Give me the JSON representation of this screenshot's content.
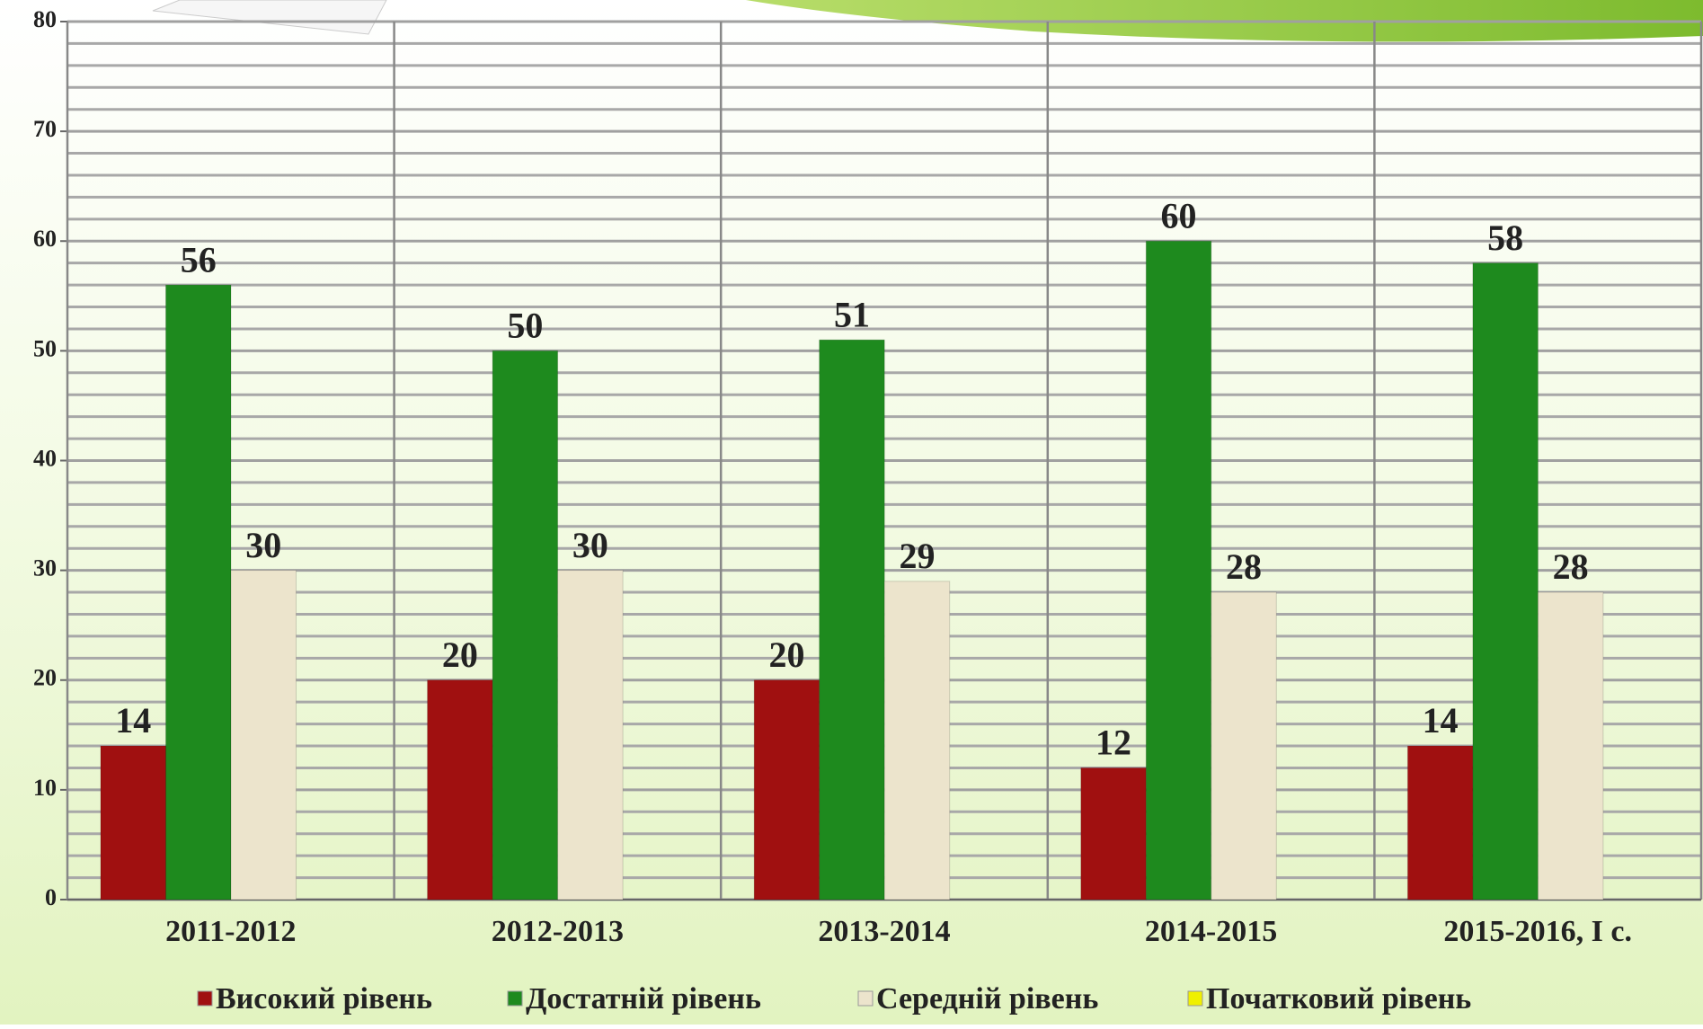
{
  "chart_data": {
    "type": "bar",
    "categories": [
      "2011-2012",
      "2012-2013",
      "2013-2014",
      "2014-2015",
      "2015-2016, I с."
    ],
    "series": [
      {
        "name": "Високий рівень",
        "color": "#a01010",
        "values": [
          14,
          20,
          20,
          12,
          14
        ]
      },
      {
        "name": "Достатній рівень",
        "color": "#1e8a1e",
        "values": [
          56,
          50,
          51,
          60,
          58
        ]
      },
      {
        "name": "Середній рівень",
        "color": "#ece4cc",
        "values": [
          30,
          30,
          29,
          28,
          28
        ]
      },
      {
        "name": "Початковий рівень",
        "color": "#f0f000",
        "values": [
          null,
          null,
          null,
          null,
          null
        ]
      }
    ],
    "ylim": [
      0,
      80
    ],
    "yticks": [
      0,
      10,
      20,
      30,
      40,
      50,
      60,
      70,
      80
    ],
    "minor_yticks": [
      2,
      4,
      6,
      8,
      12,
      14,
      16,
      18,
      22,
      24,
      26,
      28,
      32,
      34,
      36,
      38,
      42,
      44,
      46,
      48,
      52,
      54,
      56,
      58,
      62,
      64,
      66,
      68,
      72,
      74,
      76,
      78
    ],
    "grid": true,
    "legend": "bottom"
  }
}
